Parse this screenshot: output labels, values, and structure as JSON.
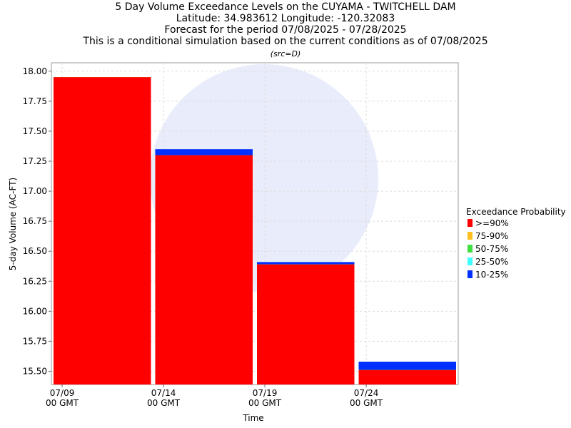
{
  "chart_data": {
    "type": "bar",
    "title": "5 Day Volume Exceedance Levels on the CUYAMA - TWITCHELL DAM",
    "subtitles": [
      "Latitude: 34.983612 Longitude: -120.32083",
      "Forecast for the period 07/08/2025 - 07/28/2025",
      "This is a conditional simulation based on the current conditions as of 07/08/2025"
    ],
    "source": "(src=D)",
    "x_label": "Time",
    "y_label": "5-day Volume (AC-FT)",
    "legend_title": "Exceedance Probability",
    "categories": [
      null,
      null,
      null,
      null
    ],
    "series": [
      {
        "name": "10-25%",
        "color": "#0030ff",
        "values": [
          17.95,
          17.35,
          16.41,
          15.58
        ]
      },
      {
        "name": "25-50%",
        "color": "#40ffff",
        "values": [
          17.95,
          17.3,
          16.39,
          15.51
        ]
      },
      {
        "name": "50-75%",
        "color": "#40e040",
        "values": [
          17.95,
          17.3,
          16.39,
          15.51
        ]
      },
      {
        "name": "75-90%",
        "color": "#ffc020",
        "values": [
          17.95,
          17.3,
          16.39,
          15.51
        ]
      },
      {
        "name": ">=90%",
        "color": "#ff0000",
        "values": [
          17.95,
          17.3,
          16.39,
          15.51
        ]
      }
    ],
    "xlim": [
      8.47,
      28.54
    ],
    "xticks": [
      {
        "value": 9,
        "label": "07/09\n00 GMT"
      },
      {
        "value": 14,
        "label": "07/14\n00 GMT"
      },
      {
        "value": 19,
        "label": "07/19\n00 GMT"
      },
      {
        "value": 24,
        "label": "07/24\n00 GMT"
      }
    ],
    "ylim": [
      15.39,
      18.07
    ],
    "yticks": [
      {
        "value": 15.5,
        "label": "15.50"
      },
      {
        "value": 15.75,
        "label": "15.75"
      },
      {
        "value": 16,
        "label": "16.00"
      },
      {
        "value": 16.25,
        "label": "16.25"
      },
      {
        "value": 16.5,
        "label": "16.50"
      },
      {
        "value": 16.75,
        "label": "16.75"
      },
      {
        "value": 17,
        "label": "17.00"
      },
      {
        "value": 17.25,
        "label": "17.25"
      },
      {
        "value": 17.5,
        "label": "17.50"
      },
      {
        "value": 17.75,
        "label": "17.75"
      },
      {
        "value": 18,
        "label": "18.00"
      }
    ],
    "grid": true
  }
}
